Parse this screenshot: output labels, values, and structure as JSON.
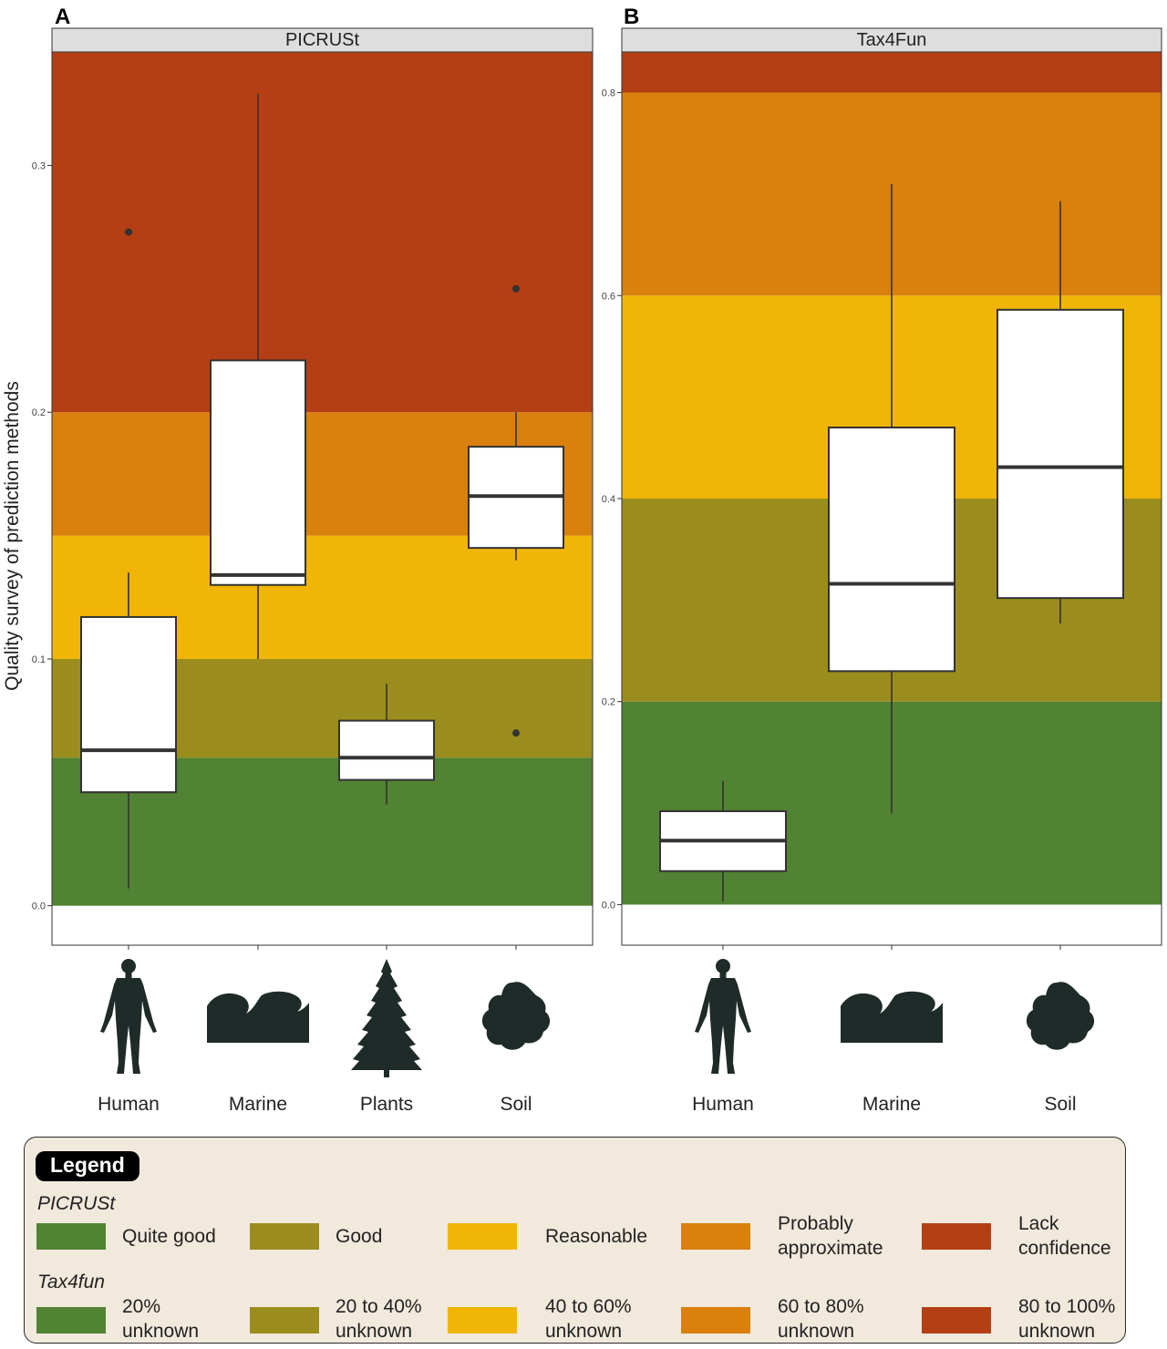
{
  "panels": [
    {
      "letter": "A",
      "strip": "PICRUSt"
    },
    {
      "letter": "B",
      "strip": "Tax4Fun"
    }
  ],
  "ylabel": "Quality survey of prediction methods",
  "chart_data": [
    {
      "type": "boxplot",
      "title": "PICRUSt",
      "ylabel": "Quality survey of prediction methods",
      "ylim": [
        -0.016,
        0.346
      ],
      "yticks": [
        0.0,
        0.1,
        0.2,
        0.3
      ],
      "ytick_labels": [
        "0.0",
        "0.1",
        "0.2",
        "0.3"
      ],
      "categories": [
        "Human",
        "Marine",
        "Plants",
        "Soil"
      ],
      "background_bands": [
        {
          "from": 0.0,
          "to": 0.06,
          "color": "#528233"
        },
        {
          "from": 0.06,
          "to": 0.1,
          "color": "#9b8d1d"
        },
        {
          "from": 0.1,
          "to": 0.15,
          "color": "#f1b507"
        },
        {
          "from": 0.15,
          "to": 0.2,
          "color": "#d9800d"
        },
        {
          "from": 0.2,
          "to": 0.346,
          "color": "#b43f15"
        }
      ],
      "boxes": [
        {
          "category": "Human",
          "whisker_low": 0.007,
          "q1": 0.046,
          "median": 0.063,
          "q3": 0.117,
          "whisker_high": 0.135,
          "outliers": [
            0.273
          ]
        },
        {
          "category": "Marine",
          "whisker_low": 0.1,
          "q1": 0.13,
          "median": 0.134,
          "q3": 0.221,
          "whisker_high": 0.329,
          "outliers": []
        },
        {
          "category": "Plants",
          "whisker_low": 0.041,
          "q1": 0.051,
          "median": 0.06,
          "q3": 0.075,
          "whisker_high": 0.09,
          "outliers": []
        },
        {
          "category": "Soil",
          "whisker_low": 0.14,
          "q1": 0.145,
          "median": 0.166,
          "q3": 0.186,
          "whisker_high": 0.2,
          "outliers": [
            0.25,
            0.07
          ]
        }
      ]
    },
    {
      "type": "boxplot",
      "title": "Tax4Fun",
      "ylim": [
        -0.04,
        0.84
      ],
      "yticks": [
        0.0,
        0.2,
        0.4,
        0.6,
        0.8
      ],
      "ytick_labels": [
        "0.0",
        "0.2",
        "0.4",
        "0.6",
        "0.8"
      ],
      "categories": [
        "Human",
        "Marine",
        "Soil"
      ],
      "background_bands": [
        {
          "from": 0.0,
          "to": 0.2,
          "color": "#528233"
        },
        {
          "from": 0.2,
          "to": 0.4,
          "color": "#9b8d1d"
        },
        {
          "from": 0.4,
          "to": 0.6,
          "color": "#f1b507"
        },
        {
          "from": 0.6,
          "to": 0.8,
          "color": "#d9800d"
        },
        {
          "from": 0.8,
          "to": 0.84,
          "color": "#b43f15"
        }
      ],
      "boxes": [
        {
          "category": "Human",
          "whisker_low": 0.003,
          "q1": 0.033,
          "median": 0.063,
          "q3": 0.092,
          "whisker_high": 0.122,
          "outliers": []
        },
        {
          "category": "Marine",
          "whisker_low": 0.09,
          "q1": 0.23,
          "median": 0.316,
          "q3": 0.47,
          "whisker_high": 0.71,
          "outliers": []
        },
        {
          "category": "Soil",
          "whisker_low": 0.277,
          "q1": 0.302,
          "median": 0.431,
          "q3": 0.586,
          "whisker_high": 0.693,
          "outliers": []
        }
      ]
    }
  ],
  "icons": {
    "Human": "human-silhouette-icon",
    "Marine": "wave-icon",
    "Plants": "conifer-tree-icon",
    "Soil": "soil-clump-icon"
  },
  "legend": {
    "title": "Legend",
    "groups": [
      {
        "label": "PICRUSt",
        "items": [
          "Quite good",
          "Good",
          "Reasonable",
          "Probably\napproximate",
          "Lack\nconfidence"
        ]
      },
      {
        "label": "Tax4fun",
        "items": [
          "20%\nunknown",
          "20 to 40%\nunknown",
          "40 to 60%\nunknown",
          "60 to 80%\nunknown",
          "80 to 100%\nunknown"
        ]
      }
    ],
    "colors": [
      "#528233",
      "#9b8d1d",
      "#f1b507",
      "#d9800d",
      "#b43f15"
    ]
  }
}
